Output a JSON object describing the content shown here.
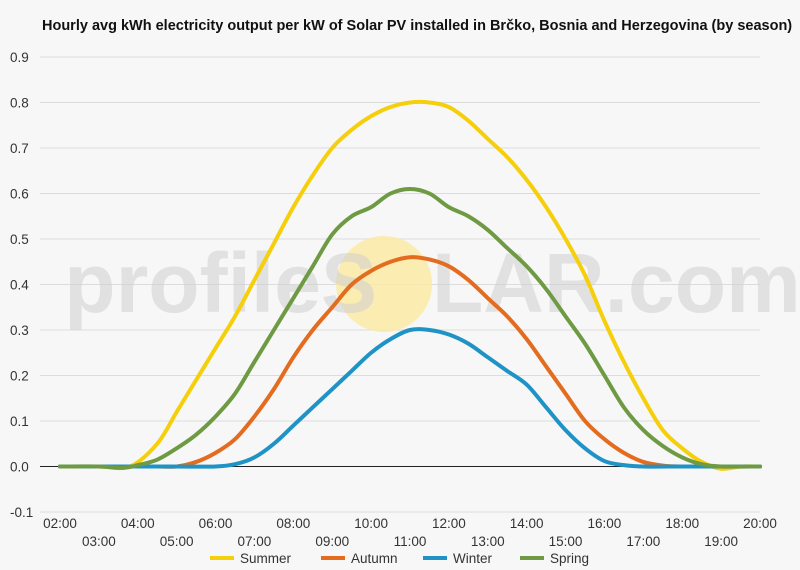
{
  "chart_data": {
    "type": "line",
    "title": "Hourly avg kWh electricity output per kW of Solar PV installed in Brčko, Bosnia and Herzegovina (by season)",
    "xlabel": "",
    "ylabel": "",
    "ylim": [
      -0.1,
      0.9
    ],
    "yticks": [
      "-0.1",
      "0.0",
      "0.1",
      "0.2",
      "0.3",
      "0.4",
      "0.5",
      "0.6",
      "0.7",
      "0.8",
      "0.9"
    ],
    "xlim": [
      2,
      20
    ],
    "categories": [
      "02:00",
      "03:00",
      "04:00",
      "05:00",
      "06:00",
      "07:00",
      "08:00",
      "09:00",
      "10:00",
      "11:00",
      "12:00",
      "13:00",
      "14:00",
      "15:00",
      "16:00",
      "17:00",
      "18:00",
      "19:00",
      "20:00"
    ],
    "grid": true,
    "legend": "bottom-center",
    "watermark": {
      "left": "profileS",
      "right": "LAR.com"
    },
    "series": [
      {
        "name": "Summer",
        "color": "#f5cf0c",
        "x": [
          2,
          3,
          3.8,
          4.5,
          5,
          5.5,
          6,
          6.5,
          7,
          7.5,
          8,
          8.5,
          9,
          9.5,
          10,
          10.5,
          11,
          11.5,
          12,
          12.5,
          13,
          13.5,
          14,
          14.5,
          15,
          15.5,
          16,
          16.5,
          17,
          17.5,
          18,
          18.5,
          19,
          19.5,
          20
        ],
        "values": [
          0,
          0,
          0,
          0.05,
          0.12,
          0.19,
          0.26,
          0.33,
          0.41,
          0.49,
          0.57,
          0.64,
          0.7,
          0.74,
          0.77,
          0.79,
          0.8,
          0.8,
          0.79,
          0.76,
          0.72,
          0.68,
          0.63,
          0.57,
          0.5,
          0.42,
          0.32,
          0.23,
          0.15,
          0.08,
          0.04,
          0.01,
          -0.005,
          0,
          0
        ]
      },
      {
        "name": "Autumn",
        "color": "#e36c1f",
        "x": [
          2,
          3,
          4,
          4.5,
          5,
          5.5,
          6,
          6.5,
          7,
          7.5,
          8,
          8.5,
          9,
          9.5,
          10,
          10.5,
          11,
          11.5,
          12,
          12.5,
          13,
          13.5,
          14,
          14.5,
          15,
          15.5,
          16,
          16.5,
          17,
          17.5,
          18,
          19,
          20
        ],
        "values": [
          0,
          0,
          0,
          0,
          0,
          0.01,
          0.03,
          0.06,
          0.11,
          0.17,
          0.24,
          0.3,
          0.35,
          0.4,
          0.43,
          0.45,
          0.46,
          0.455,
          0.44,
          0.41,
          0.37,
          0.33,
          0.28,
          0.22,
          0.16,
          0.1,
          0.06,
          0.03,
          0.01,
          0.002,
          0,
          0,
          0
        ]
      },
      {
        "name": "Winter",
        "color": "#1f93c5",
        "x": [
          2,
          3,
          4,
          5,
          6,
          6.5,
          7,
          7.5,
          8,
          8.5,
          9,
          9.5,
          10,
          10.5,
          11,
          11.5,
          12,
          12.5,
          13,
          13.5,
          14,
          14.5,
          15,
          15.5,
          16,
          16.5,
          17,
          18,
          19,
          20
        ],
        "values": [
          0,
          0,
          0,
          0,
          0,
          0.005,
          0.02,
          0.05,
          0.09,
          0.13,
          0.17,
          0.21,
          0.25,
          0.28,
          0.3,
          0.3,
          0.29,
          0.27,
          0.24,
          0.21,
          0.18,
          0.13,
          0.08,
          0.04,
          0.012,
          0.003,
          0,
          0,
          0,
          0
        ]
      },
      {
        "name": "Spring",
        "color": "#6e9a44",
        "x": [
          2,
          3,
          3.6,
          4,
          4.5,
          5,
          5.5,
          6,
          6.5,
          7,
          7.5,
          8,
          8.5,
          9,
          9.5,
          10,
          10.5,
          11,
          11.5,
          12,
          12.5,
          13,
          13.5,
          14,
          14.5,
          15,
          15.5,
          16,
          16.5,
          17,
          17.5,
          18,
          18.5,
          19,
          20
        ],
        "values": [
          0,
          0,
          -0.003,
          0.003,
          0.015,
          0.04,
          0.07,
          0.11,
          0.16,
          0.23,
          0.3,
          0.37,
          0.44,
          0.51,
          0.55,
          0.57,
          0.6,
          0.61,
          0.6,
          0.57,
          0.55,
          0.52,
          0.48,
          0.44,
          0.39,
          0.33,
          0.27,
          0.2,
          0.13,
          0.08,
          0.045,
          0.02,
          0.005,
          0,
          0
        ]
      }
    ]
  }
}
